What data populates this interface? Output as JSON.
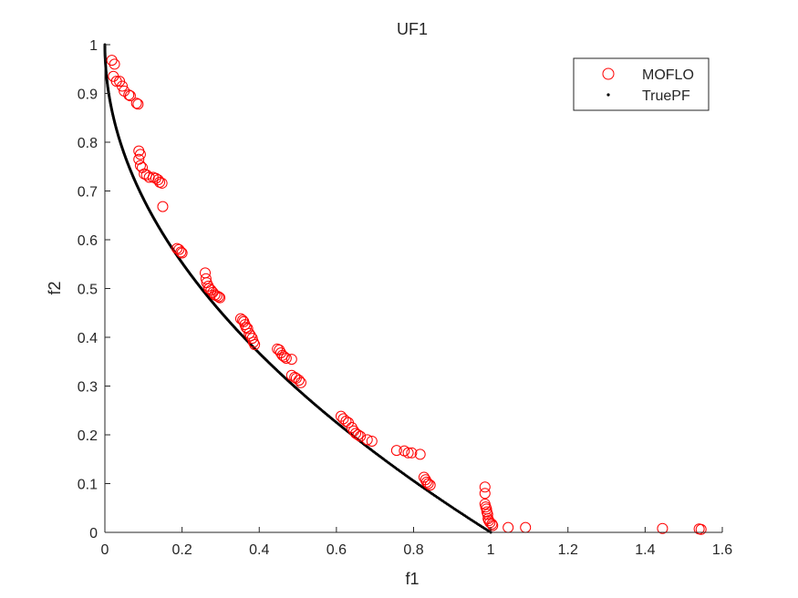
{
  "chart_data": {
    "type": "scatter",
    "title": "UF1",
    "xlabel": "f1",
    "ylabel": "f2",
    "xlim": [
      0,
      1.6
    ],
    "ylim": [
      0,
      1
    ],
    "xticks": [
      0,
      0.2,
      0.4,
      0.6,
      0.8,
      1,
      1.2,
      1.4,
      1.6
    ],
    "xtick_labels": [
      "0",
      "0.2",
      "0.4",
      "0.6",
      "0.8",
      "1",
      "1.2",
      "1.4",
      "1.6"
    ],
    "yticks": [
      0,
      0.1,
      0.2,
      0.3,
      0.4,
      0.5,
      0.6,
      0.7,
      0.8,
      0.9,
      1
    ],
    "ytick_labels": [
      "0",
      "0.1",
      "0.2",
      "0.3",
      "0.4",
      "0.5",
      "0.6",
      "0.7",
      "0.8",
      "0.9",
      "1"
    ],
    "grid": false,
    "legend_position": "top-right",
    "series": [
      {
        "name": "MOFLO",
        "marker": "open-circle",
        "color": "#ff0000",
        "points": [
          [
            0.018,
            0.968
          ],
          [
            0.025,
            0.96
          ],
          [
            0.022,
            0.935
          ],
          [
            0.03,
            0.925
          ],
          [
            0.038,
            0.925
          ],
          [
            0.045,
            0.915
          ],
          [
            0.05,
            0.905
          ],
          [
            0.062,
            0.897
          ],
          [
            0.066,
            0.895
          ],
          [
            0.082,
            0.88
          ],
          [
            0.086,
            0.878
          ],
          [
            0.088,
            0.782
          ],
          [
            0.092,
            0.775
          ],
          [
            0.088,
            0.765
          ],
          [
            0.092,
            0.752
          ],
          [
            0.097,
            0.748
          ],
          [
            0.102,
            0.735
          ],
          [
            0.108,
            0.733
          ],
          [
            0.115,
            0.728
          ],
          [
            0.125,
            0.728
          ],
          [
            0.132,
            0.726
          ],
          [
            0.138,
            0.723
          ],
          [
            0.142,
            0.718
          ],
          [
            0.148,
            0.716
          ],
          [
            0.15,
            0.668
          ],
          [
            0.187,
            0.582
          ],
          [
            0.192,
            0.58
          ],
          [
            0.197,
            0.575
          ],
          [
            0.2,
            0.573
          ],
          [
            0.26,
            0.532
          ],
          [
            0.262,
            0.52
          ],
          [
            0.264,
            0.512
          ],
          [
            0.268,
            0.505
          ],
          [
            0.27,
            0.5
          ],
          [
            0.275,
            0.497
          ],
          [
            0.28,
            0.492
          ],
          [
            0.285,
            0.487
          ],
          [
            0.29,
            0.485
          ],
          [
            0.295,
            0.483
          ],
          [
            0.298,
            0.481
          ],
          [
            0.352,
            0.438
          ],
          [
            0.357,
            0.435
          ],
          [
            0.36,
            0.432
          ],
          [
            0.363,
            0.426
          ],
          [
            0.366,
            0.42
          ],
          [
            0.37,
            0.418
          ],
          [
            0.374,
            0.408
          ],
          [
            0.378,
            0.403
          ],
          [
            0.382,
            0.398
          ],
          [
            0.385,
            0.39
          ],
          [
            0.388,
            0.385
          ],
          [
            0.447,
            0.376
          ],
          [
            0.452,
            0.374
          ],
          [
            0.456,
            0.368
          ],
          [
            0.46,
            0.363
          ],
          [
            0.465,
            0.36
          ],
          [
            0.47,
            0.357
          ],
          [
            0.484,
            0.355
          ],
          [
            0.484,
            0.322
          ],
          [
            0.492,
            0.318
          ],
          [
            0.496,
            0.316
          ],
          [
            0.503,
            0.312
          ],
          [
            0.508,
            0.307
          ],
          [
            0.612,
            0.238
          ],
          [
            0.618,
            0.233
          ],
          [
            0.625,
            0.228
          ],
          [
            0.631,
            0.225
          ],
          [
            0.64,
            0.215
          ],
          [
            0.645,
            0.208
          ],
          [
            0.65,
            0.203
          ],
          [
            0.656,
            0.2
          ],
          [
            0.662,
            0.197
          ],
          [
            0.68,
            0.19
          ],
          [
            0.692,
            0.187
          ],
          [
            0.756,
            0.168
          ],
          [
            0.776,
            0.167
          ],
          [
            0.786,
            0.163
          ],
          [
            0.795,
            0.163
          ],
          [
            0.817,
            0.16
          ],
          [
            0.827,
            0.113
          ],
          [
            0.831,
            0.108
          ],
          [
            0.834,
            0.103
          ],
          [
            0.838,
            0.1
          ],
          [
            0.843,
            0.097
          ],
          [
            0.985,
            0.093
          ],
          [
            0.985,
            0.08
          ],
          [
            0.985,
            0.058
          ],
          [
            0.987,
            0.052
          ],
          [
            0.989,
            0.048
          ],
          [
            0.99,
            0.042
          ],
          [
            0.992,
            0.037
          ],
          [
            0.993,
            0.028
          ],
          [
            0.995,
            0.024
          ],
          [
            0.998,
            0.02
          ],
          [
            1.003,
            0.017
          ],
          [
            1.005,
            0.014
          ],
          [
            1.045,
            0.01
          ],
          [
            1.09,
            0.01
          ],
          [
            1.445,
            0.008
          ],
          [
            1.54,
            0.007
          ],
          [
            1.545,
            0.006
          ]
        ]
      },
      {
        "name": "TruePF",
        "marker": "dot",
        "color": "#000000",
        "function": "f2 = 1 - sqrt(f1)",
        "f1_range": [
          0,
          1
        ]
      }
    ]
  }
}
